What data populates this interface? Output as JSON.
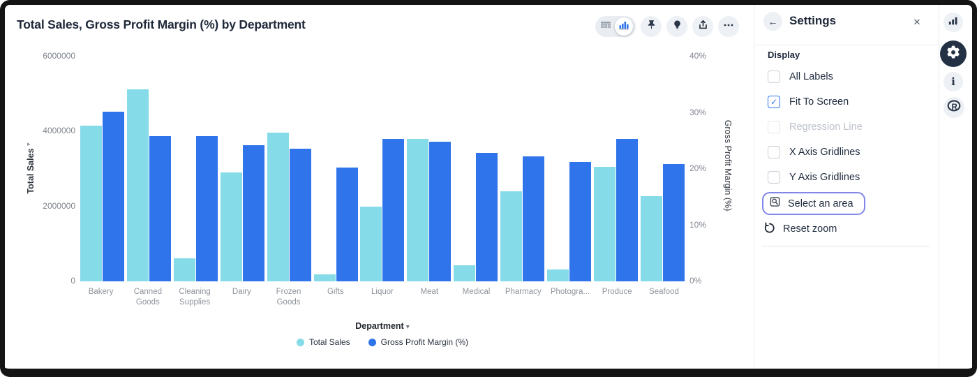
{
  "chart": {
    "title": "Total Sales, Gross Profit Margin (%) by Department",
    "left_axis": {
      "title": "Total Sales",
      "ticks": [
        "6000000",
        "4000000",
        "2000000",
        "0"
      ]
    },
    "right_axis": {
      "title": "Gross Profit Margin (%)",
      "ticks": [
        "40%",
        "30%",
        "20%",
        "10%",
        "0%"
      ]
    },
    "x_axis_title": "Department"
  },
  "chart_data": {
    "type": "bar",
    "title": "Total Sales, Gross Profit Margin (%) by Department",
    "categories": [
      "Bakery",
      "Canned Goods",
      "Cleaning Supplies",
      "Dairy",
      "Frozen Goods",
      "Gifts",
      "Liquor",
      "Meat",
      "Medical",
      "Pharmacy",
      "Photogra...",
      "Produce",
      "Seafood"
    ],
    "series": [
      {
        "name": "Total Sales",
        "axis": "left",
        "color": "#85DBE8",
        "values": [
          4150000,
          5130000,
          610000,
          2900000,
          3970000,
          180000,
          2000000,
          3800000,
          430000,
          2400000,
          320000,
          3050000,
          2270000
        ]
      },
      {
        "name": "Gross Profit Margin (%)",
        "axis": "right",
        "color": "#2F74EB",
        "values": [
          30.2,
          25.9,
          25.8,
          24.2,
          23.6,
          20.2,
          25.4,
          24.8,
          22.9,
          22.3,
          21.2,
          25.3,
          20.9
        ]
      }
    ],
    "xlabel": "Department",
    "ylabel_left": "Total Sales",
    "ylabel_right": "Gross Profit Margin (%)",
    "ylim_left": [
      0,
      6000000
    ],
    "ylim_right": [
      0,
      40
    ],
    "grid": false,
    "legend_position": "bottom"
  },
  "toolbar": {
    "view_toggle": [
      "table-view",
      "chart-view"
    ],
    "buttons": [
      "pin",
      "insights-bulb",
      "export",
      "more-options"
    ]
  },
  "settings": {
    "title": "Settings",
    "section": "Display",
    "display_options": [
      {
        "label": "All Labels",
        "checked": false,
        "disabled": false
      },
      {
        "label": "Fit To Screen",
        "checked": true,
        "disabled": false
      },
      {
        "label": "Regression Line",
        "checked": false,
        "disabled": true
      },
      {
        "label": "X Axis Gridlines",
        "checked": false,
        "disabled": false
      },
      {
        "label": "Y Axis Gridlines",
        "checked": false,
        "disabled": false
      }
    ],
    "select_area_label": "Select an area",
    "reset_zoom_label": "Reset zoom"
  },
  "rail": [
    "chart-panel",
    "settings-gear",
    "info",
    "r-language"
  ],
  "icons": {
    "back_arrow": "←",
    "close": "✕",
    "check": "✓",
    "caret_down": "▾",
    "sort_right": "▸",
    "sort_left": "◂",
    "info": "i"
  },
  "colors": {
    "accent_blue": "#2F74EB",
    "cyan": "#85DBE8",
    "select_border": "#8186E8",
    "dark_circle": "#243145"
  }
}
